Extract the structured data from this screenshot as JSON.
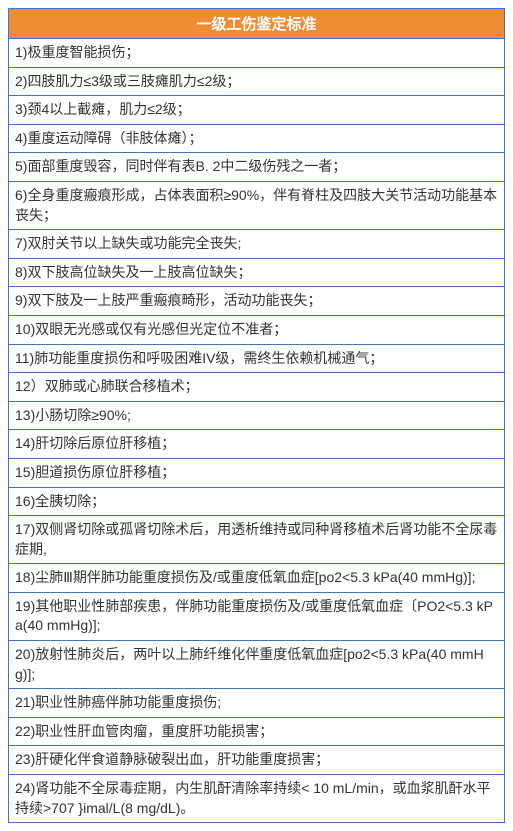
{
  "table": {
    "header": "一级工伤鉴定标准",
    "header_bg": "#ef8d37",
    "header_fg": "#ffffff",
    "border_color": "#4472c4",
    "cell_fg": "#333333",
    "cell_fontsize": 14,
    "header_fontsize": 15,
    "rows": [
      "1)极重度智能损伤；",
      "2)四肢肌力≤3级或三肢瘫肌力≤2级；",
      "3)颈4以上截瘫，肌力≤2级；",
      "4)重度运动障碍（非肢体瘫）；",
      "5)面部重度毁容，同时伴有表B. 2中二级伤残之一者；",
      "6)全身重度瘢痕形成，占体表面积≥90%，伴有脊柱及四肢大关节活动功能基本丧失；",
      "7)双肘关节以上缺失或功能完全丧失;",
      "8)双下肢高位缺失及一上肢高位缺失；",
      "9)双下肢及一上肢严重瘢痕畸形，活动功能丧失；",
      "10)双眼无光感或仅有光感但光定位不准者；",
      "11)肺功能重度损伤和呼吸困难IV级，需终生依赖机械通气；",
      "12）双肺或心肺联合移植术；",
      "13)小肠切除≥90%;",
      "14)肝切除后原位肝移植；",
      "15)胆道损伤原位肝移植；",
      "16)全胰切除；",
      "17)双侧肾切除或孤肾切除术后，用透析维持或同种肾移植术后肾功能不全尿毒症期,",
      "18)尘肺Ⅲ期伴肺功能重度损伤及/或重度低氧血症[po2<5.3 kPa(40 mmHg)];",
      "19)其他职业性肺部疾患，伴肺功能重度损伤及/或重度低氧血症〔PO2<5.3 kPa(40 mmHg)];",
      "20)放射性肺炎后，两叶以上肺纤维化伴重度低氧血症[po2<5.3 kPa(40 mmHg)];",
      "21)职业性肺癌伴肺功能重度损伤;",
      "22)职业性肝血管肉瘤，重度肝功能损害；",
      "23)肝硬化伴食道静脉破裂出血，肝功能重度损害；",
      "24)肾功能不全尿毒症期，内生肌酐清除率持续< 10 mL/min，或血浆肌酐水平持续>707 }imal/L(8 mg/dL)。"
    ]
  }
}
